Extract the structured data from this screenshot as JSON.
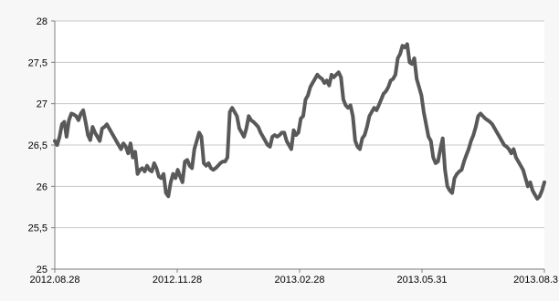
{
  "chart_data": {
    "type": "line",
    "title": "",
    "xlabel": "",
    "ylabel": "",
    "x_tick_labels": [
      "2012.08.28",
      "2012.11.28",
      "2013.02.28",
      "2013.05.31",
      "2013.08.3"
    ],
    "y_tick_labels": [
      "25",
      "25,5",
      "26",
      "26,5",
      "27",
      "27,5",
      "28"
    ],
    "ylim": [
      25,
      28
    ],
    "xlim": [
      0,
      260
    ],
    "grid": "horizontal",
    "legend": "none",
    "colors": {
      "line": "#595959",
      "plot_bg": "#ffffff",
      "grid": "#c8c8c8",
      "axis": "#7f7f7f"
    },
    "series": [
      {
        "values": [
          26.55,
          26.5,
          26.6,
          26.75,
          26.78,
          26.6,
          26.8,
          26.88,
          26.87,
          26.85,
          26.8,
          26.88,
          26.92,
          26.78,
          26.62,
          26.56,
          26.72,
          26.65,
          26.6,
          26.55,
          26.7,
          26.72,
          26.75,
          26.7,
          26.65,
          26.6,
          26.55,
          26.5,
          26.45,
          26.52,
          26.48,
          26.4,
          26.52,
          26.35,
          26.42,
          26.15,
          26.2,
          26.22,
          26.18,
          26.25,
          26.2,
          26.18,
          26.28,
          26.22,
          26.12,
          26.1,
          26.15,
          25.92,
          25.88,
          26.05,
          26.15,
          26.1,
          26.2,
          26.12,
          26.05,
          26.3,
          26.32,
          26.25,
          26.22,
          26.45,
          26.55,
          26.65,
          26.6,
          26.28,
          26.25,
          26.28,
          26.22,
          26.2,
          26.22,
          26.25,
          26.28,
          26.3,
          26.3,
          26.35,
          26.9,
          26.95,
          26.9,
          26.85,
          26.7,
          26.65,
          26.6,
          26.7,
          26.85,
          26.8,
          26.78,
          26.75,
          26.72,
          26.65,
          26.6,
          26.55,
          26.5,
          26.48,
          26.6,
          26.62,
          26.6,
          26.62,
          26.65,
          26.65,
          26.55,
          26.5,
          26.45,
          26.68,
          26.62,
          26.65,
          26.82,
          26.85,
          27.05,
          27.1,
          27.2,
          27.25,
          27.3,
          27.35,
          27.32,
          27.3,
          27.25,
          27.28,
          27.22,
          27.35,
          27.32,
          27.35,
          27.38,
          27.32,
          27.05,
          26.98,
          26.95,
          26.98,
          26.85,
          26.55,
          26.48,
          26.45,
          26.58,
          26.62,
          26.72,
          26.85,
          26.9,
          26.95,
          26.92,
          26.98,
          27.05,
          27.12,
          27.15,
          27.2,
          27.28,
          27.3,
          27.35,
          27.55,
          27.6,
          27.7,
          27.68,
          27.72,
          27.5,
          27.48,
          27.55,
          27.3,
          27.2,
          27.1,
          26.9,
          26.75,
          26.6,
          26.55,
          26.35,
          26.28,
          26.3,
          26.45,
          26.58,
          26.2,
          26.0,
          25.95,
          25.92,
          26.1,
          26.15,
          26.18,
          26.2,
          26.3,
          26.38,
          26.45,
          26.55,
          26.62,
          26.72,
          26.85,
          26.88,
          26.85,
          26.82,
          26.8,
          26.78,
          26.75,
          26.7,
          26.65,
          26.6,
          26.55,
          26.5,
          26.48,
          26.45,
          26.4,
          26.45,
          26.35,
          26.3,
          26.25,
          26.2,
          26.1,
          26.0,
          26.05,
          25.95,
          25.9,
          25.85,
          25.88,
          25.95,
          26.05
        ]
      }
    ]
  }
}
